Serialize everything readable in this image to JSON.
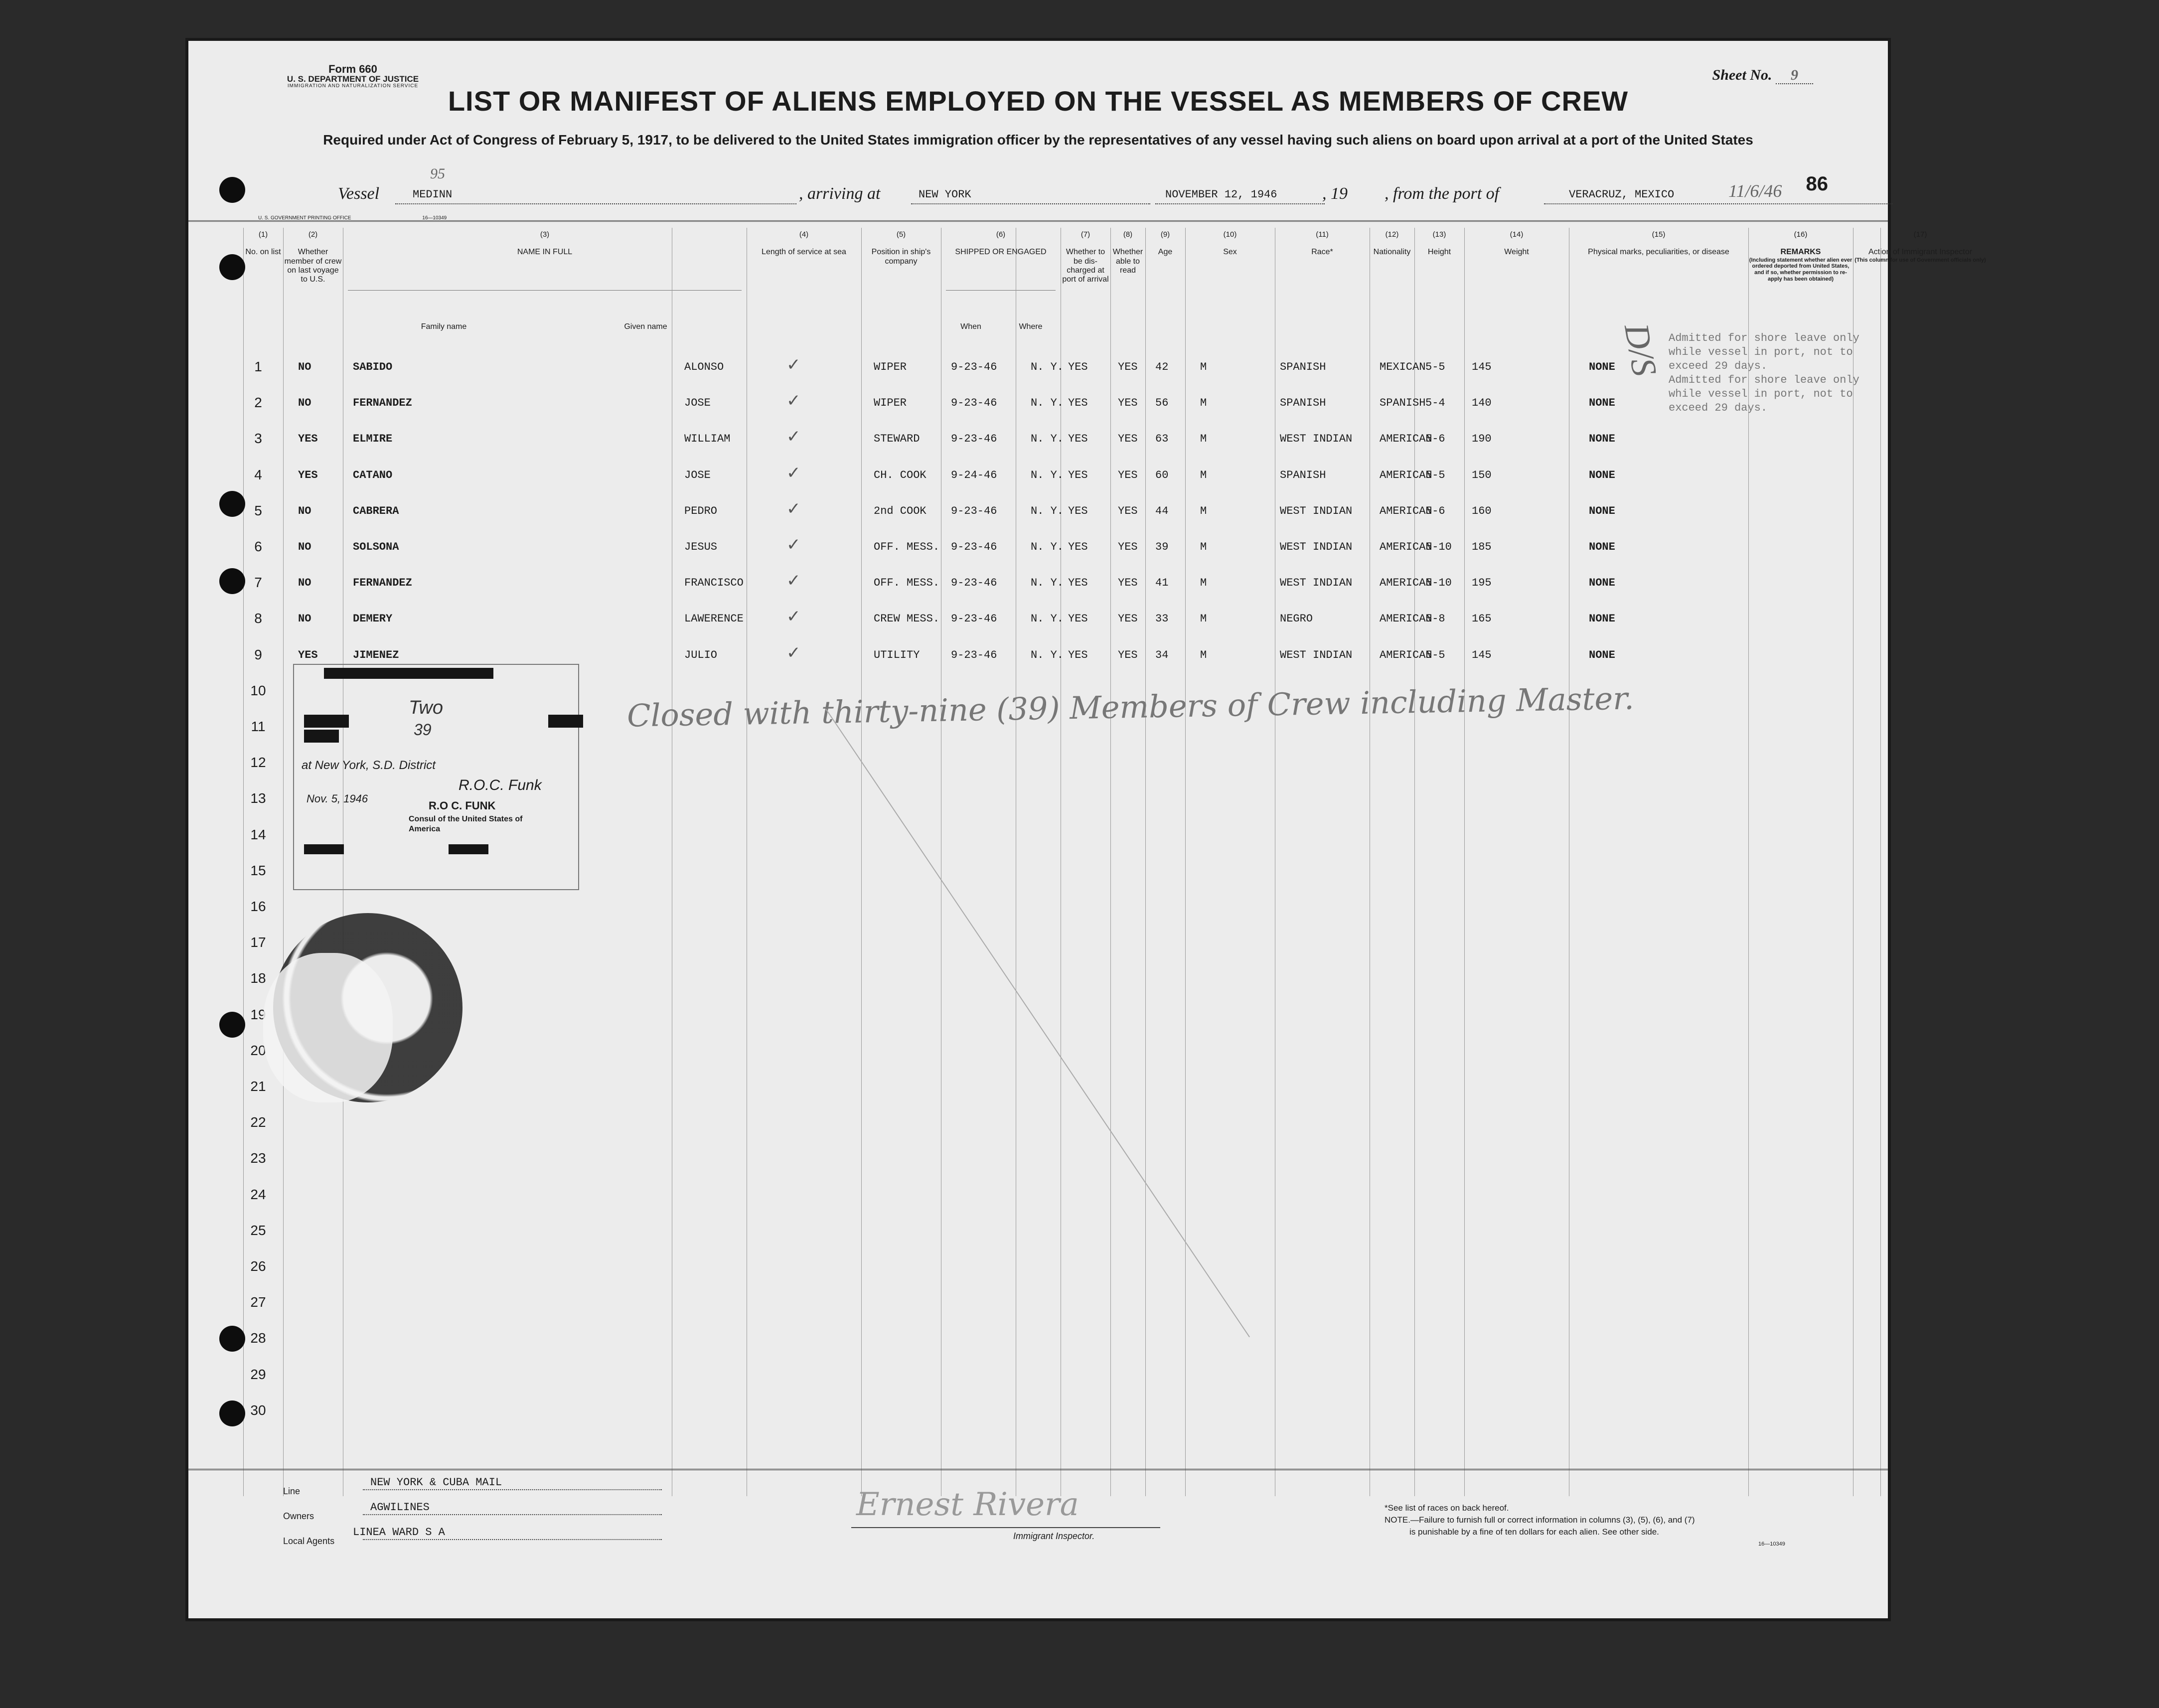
{
  "form": {
    "form_label": "Form 660",
    "dept": "U. S. DEPARTMENT OF JUSTICE",
    "service": "IMMIGRATION AND NATURALIZATION SERVICE",
    "sheet_label": "Sheet No.",
    "sheet_no": "9",
    "title": "LIST OR MANIFEST OF ALIENS EMPLOYED ON THE VESSEL AS MEMBERS OF CREW",
    "subtitle": "Required under Act of Congress of February 5, 1917, to be delivered to the United States immigration officer by the representatives of any vessel having such aliens on board upon arrival at a port of the United States",
    "page_number": "86",
    "gpo": "U. S. GOVERNMENT PRINTING OFFICE",
    "gpo_code": "16—10349",
    "form_code": "16—10349"
  },
  "vessel": {
    "vessel_label": "Vessel",
    "vessel_name": "MEDINN",
    "vessel_hand": "95",
    "arriving_label": ", arriving at",
    "arriving_at": "NEW YORK",
    "date": "NOVEMBER 12, 1946",
    "year_label": ", 19",
    "from_label": ", from the port of",
    "from_port": "VERACRUZ, MEXICO",
    "date_hand": "11/6/46"
  },
  "columns": [
    {
      "num": "(1)",
      "label": "No. on list"
    },
    {
      "num": "(2)",
      "label": "Whether member of crew on last voyage to U.S."
    },
    {
      "num": "(3)",
      "label": "NAME IN FULL",
      "sub": [
        "Family name",
        "Given name"
      ]
    },
    {
      "num": "(4)",
      "label": "Length of service at sea"
    },
    {
      "num": "(5)",
      "label": "Position in ship's company"
    },
    {
      "num": "(6)",
      "label": "SHIPPED OR ENGAGED",
      "sub": [
        "When",
        "Where"
      ]
    },
    {
      "num": "(7)",
      "label": "Whether to be dis-charged at port of arrival"
    },
    {
      "num": "(8)",
      "label": "Whether able to read"
    },
    {
      "num": "(9)",
      "label": "Age"
    },
    {
      "num": "(10)",
      "label": "Sex"
    },
    {
      "num": "(11)",
      "label": "Race*"
    },
    {
      "num": "(12)",
      "label": "Nationality"
    },
    {
      "num": "(13)",
      "label": "Height"
    },
    {
      "num": "(14)",
      "label": "Weight"
    },
    {
      "num": "(15)",
      "label": "Physical marks, peculiarities, or disease"
    },
    {
      "num": "(16)",
      "label": "REMARKS",
      "note": "(Including statement whether alien ever ordered deported from United States, and if so, whether permission to re-apply has been obtained)"
    },
    {
      "num": "(17)",
      "label": "Action of Immigrant Inspector",
      "note": "(This column for use of Government officials only)"
    }
  ],
  "crew": [
    {
      "no": "1",
      "last_voyage": "NO",
      "family": "SABIDO",
      "given": "ALONSO",
      "service": "✓",
      "position": "WIPER",
      "when": "9-23-46",
      "where": "N. Y.",
      "discharged": "YES",
      "read": "YES",
      "age": "42",
      "sex": "M",
      "race": "SPANISH",
      "nationality": "MEXICAN",
      "height": "5-5",
      "weight": "145",
      "marks": "NONE"
    },
    {
      "no": "2",
      "last_voyage": "NO",
      "family": "FERNANDEZ",
      "given": "JOSE",
      "service": "✓",
      "position": "WIPER",
      "when": "9-23-46",
      "where": "N. Y.",
      "discharged": "YES",
      "read": "YES",
      "age": "56",
      "sex": "M",
      "race": "SPANISH",
      "nationality": "SPANISH",
      "height": "5-4",
      "weight": "140",
      "marks": "NONE"
    },
    {
      "no": "3",
      "last_voyage": "YES",
      "family": "ELMIRE",
      "given": "WILLIAM",
      "service": "✓",
      "position": "STEWARD",
      "when": "9-23-46",
      "where": "N. Y.",
      "discharged": "YES",
      "read": "YES",
      "age": "63",
      "sex": "M",
      "race": "WEST INDIAN",
      "nationality": "AMERICAN",
      "height": "5-6",
      "weight": "190",
      "marks": "NONE"
    },
    {
      "no": "4",
      "last_voyage": "YES",
      "family": "CATANO",
      "given": "JOSE",
      "service": "✓",
      "position": "CH. COOK",
      "when": "9-24-46",
      "where": "N. Y.",
      "discharged": "YES",
      "read": "YES",
      "age": "60",
      "sex": "M",
      "race": "SPANISH",
      "nationality": "AMERICAN",
      "height": "5-5",
      "weight": "150",
      "marks": "NONE"
    },
    {
      "no": "5",
      "last_voyage": "NO",
      "family": "CABRERA",
      "given": "PEDRO",
      "service": "✓",
      "position": "2nd COOK",
      "when": "9-23-46",
      "where": "N. Y.",
      "discharged": "YES",
      "read": "YES",
      "age": "44",
      "sex": "M",
      "race": "WEST INDIAN",
      "nationality": "AMERICAN",
      "height": "5-6",
      "weight": "160",
      "marks": "NONE"
    },
    {
      "no": "6",
      "last_voyage": "NO",
      "family": "SOLSONA",
      "given": "JESUS",
      "service": "✓",
      "position": "OFF. MESS.",
      "when": "9-23-46",
      "where": "N. Y.",
      "discharged": "YES",
      "read": "YES",
      "age": "39",
      "sex": "M",
      "race": "WEST INDIAN",
      "nationality": "AMERICAN",
      "height": "5-10",
      "weight": "185",
      "marks": "NONE"
    },
    {
      "no": "7",
      "last_voyage": "NO",
      "family": "FERNANDEZ",
      "given": "FRANCISCO",
      "service": "✓",
      "position": "OFF. MESS.",
      "when": "9-23-46",
      "where": "N. Y.",
      "discharged": "YES",
      "read": "YES",
      "age": "41",
      "sex": "M",
      "race": "WEST INDIAN",
      "nationality": "AMERICAN",
      "height": "5-10",
      "weight": "195",
      "marks": "NONE"
    },
    {
      "no": "8",
      "last_voyage": "NO",
      "family": "DEMERY",
      "given": "LAWERENCE",
      "service": "✓",
      "position": "CREW MESS.",
      "when": "9-23-46",
      "where": "N. Y.",
      "discharged": "YES",
      "read": "YES",
      "age": "33",
      "sex": "M",
      "race": "NEGRO",
      "nationality": "AMERICAN",
      "height": "5-8",
      "weight": "165",
      "marks": "NONE"
    },
    {
      "no": "9",
      "last_voyage": "YES",
      "family": "JIMENEZ",
      "given": "JULIO",
      "service": "✓",
      "position": "UTILITY",
      "when": "9-23-46",
      "where": "N. Y.",
      "discharged": "YES",
      "read": "YES",
      "age": "34",
      "sex": "M",
      "race": "WEST INDIAN",
      "nationality": "AMERICAN",
      "height": "5-5",
      "weight": "145",
      "marks": "NONE"
    }
  ],
  "empty_rows": [
    "10",
    "11",
    "12",
    "13",
    "14",
    "15",
    "16",
    "17",
    "18",
    "19",
    "20",
    "21",
    "22",
    "23",
    "24",
    "25",
    "26",
    "27",
    "28",
    "29",
    "30"
  ],
  "remarks": {
    "line1": "Admitted for shore leave only",
    "line2": "while vessel in port, not to",
    "line3": "exceed 29 days.",
    "line4": "Admitted for shore leave only",
    "line5": "while vessel in port, not to",
    "line6": "exceed 29 days.",
    "initials": "D/S"
  },
  "handnote": "Closed with thirty-nine (39) Members of Crew including Master.",
  "stamp": {
    "word": "Two",
    "number": "39",
    "city": "at New York, S.D. District",
    "date": "Nov. 5, 1946",
    "name": "R.O C. FUNK",
    "title": "Consul of the United States of America",
    "signature": "R.O.C. Funk"
  },
  "footer": {
    "line_label": "Line",
    "line_value": "NEW YORK & CUBA MAIL",
    "owners_label": "Owners",
    "owners_value": "AGWILINES",
    "agents_label": "Local Agents",
    "agents_value": "LINEA WARD S A",
    "signature": "Ernest Rivera",
    "inspector_label": "Immigrant Inspector.",
    "note1": "*See list of races on back hereof.",
    "note2": "NOTE.—Failure to furnish full or correct information in columns (3), (5), (6), and (7)",
    "note3": "is punishable by a fine of ten dollars for each alien.  See other side."
  }
}
